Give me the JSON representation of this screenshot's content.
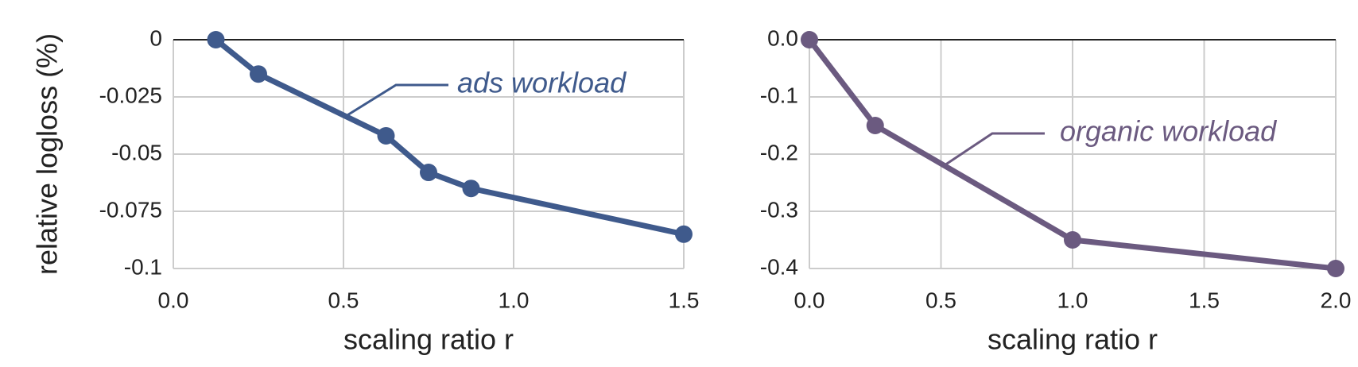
{
  "chart_data": [
    {
      "type": "line",
      "ylabel": "relative logloss (%)",
      "xlabel": "scaling ratio r",
      "annotation": "ads workload",
      "color": "#3f5a8c",
      "x": [
        0.125,
        0.25,
        0.625,
        0.75,
        0.875,
        1.5
      ],
      "values": [
        0,
        -0.015,
        -0.042,
        -0.058,
        -0.065,
        -0.085
      ],
      "xlim": [
        0,
        1.5
      ],
      "ylim": [
        -0.1,
        0
      ],
      "xticks": [
        {
          "value": 0,
          "label": "0.0"
        },
        0.5,
        {
          "value": 1,
          "label": "1.0"
        },
        1.5
      ],
      "yticks": [
        0,
        -0.025,
        -0.05,
        -0.075,
        -0.1
      ],
      "grid": true
    },
    {
      "type": "line",
      "xlabel": "scaling ratio r",
      "annotation": "organic workload",
      "color": "#6b5a80",
      "x": [
        0,
        0.25,
        1,
        2
      ],
      "values": [
        0,
        -0.15,
        -0.35,
        -0.4
      ],
      "xlim": [
        0,
        2
      ],
      "ylim": [
        -0.4,
        0
      ],
      "xticks": [
        {
          "value": 0,
          "label": "0.0"
        },
        0.5,
        {
          "value": 1,
          "label": "1.0"
        },
        1.5,
        {
          "value": 2,
          "label": "2.0"
        }
      ],
      "yticks": [
        {
          "value": 0,
          "label": "0.0"
        },
        -0.1,
        -0.2,
        -0.3,
        -0.4
      ],
      "grid": true
    }
  ]
}
